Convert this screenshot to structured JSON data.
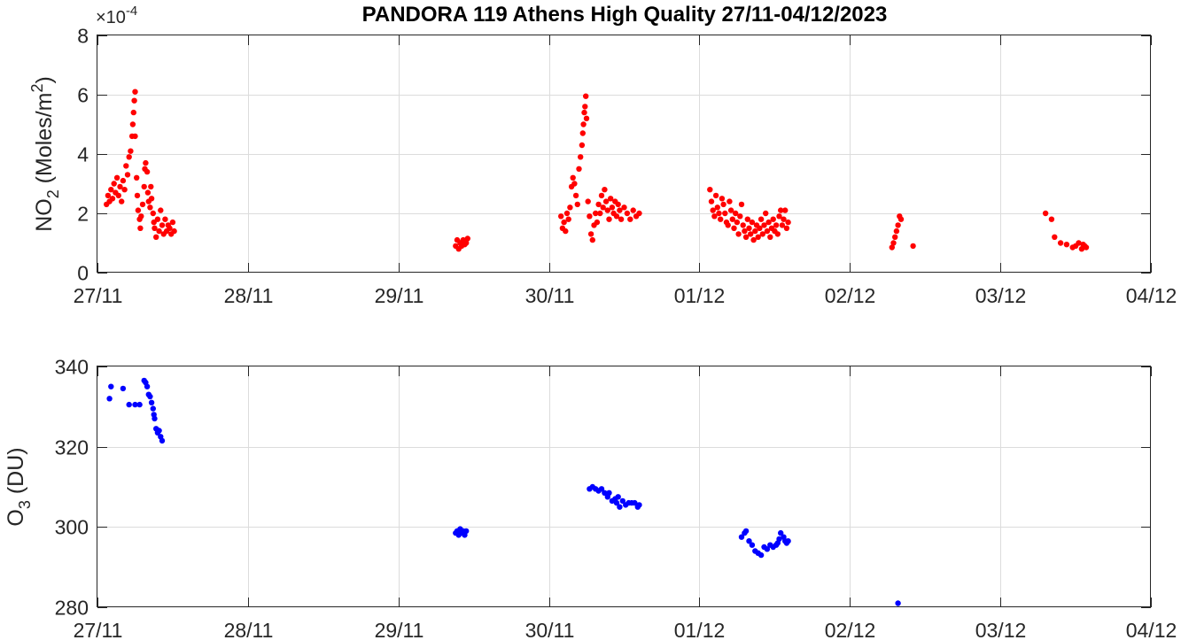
{
  "title": "PANDORA 119 Athens High Quality 27/11-04/12/2023",
  "chart_data": [
    {
      "type": "scatter",
      "ylabel_main": "NO",
      "ylabel_sub": "2",
      "ylabel_unit_pre": " (Moles/m",
      "ylabel_unit_sup": "2",
      "ylabel_unit_post": ")",
      "exponent_base": "×10",
      "exponent_power": "-4",
      "x_tick_labels": [
        "27/11",
        "28/11",
        "29/11",
        "30/11",
        "01/12",
        "02/12",
        "03/12",
        "04/12"
      ],
      "xlim": [
        0,
        7
      ],
      "ylim": [
        0,
        8
      ],
      "y_ticks": [
        0,
        2,
        4,
        6,
        8
      ],
      "y_tick_labels": [
        "0",
        "2",
        "4",
        "6",
        "8"
      ],
      "grid": true,
      "series": [
        {
          "color": "#ff0000",
          "points": [
            [
              0.06,
              2.3
            ],
            [
              0.07,
              2.6
            ],
            [
              0.08,
              2.4
            ],
            [
              0.09,
              2.8
            ],
            [
              0.1,
              2.5
            ],
            [
              0.11,
              3.0
            ],
            [
              0.12,
              2.7
            ],
            [
              0.13,
              3.2
            ],
            [
              0.14,
              2.6
            ],
            [
              0.15,
              2.9
            ],
            [
              0.16,
              2.4
            ],
            [
              0.17,
              3.1
            ],
            [
              0.18,
              2.8
            ],
            [
              0.19,
              3.6
            ],
            [
              0.2,
              3.3
            ],
            [
              0.21,
              3.9
            ],
            [
              0.22,
              4.1
            ],
            [
              0.23,
              4.6
            ],
            [
              0.235,
              5.0
            ],
            [
              0.24,
              5.4
            ],
            [
              0.245,
              5.8
            ],
            [
              0.25,
              6.1
            ],
            [
              0.25,
              4.6
            ],
            [
              0.26,
              3.2
            ],
            [
              0.265,
              2.6
            ],
            [
              0.27,
              2.1
            ],
            [
              0.28,
              1.8
            ],
            [
              0.285,
              1.5
            ],
            [
              0.29,
              1.9
            ],
            [
              0.3,
              2.3
            ],
            [
              0.31,
              2.9
            ],
            [
              0.315,
              3.5
            ],
            [
              0.32,
              3.7
            ],
            [
              0.33,
              3.4
            ],
            [
              0.335,
              2.7
            ],
            [
              0.34,
              2.4
            ],
            [
              0.35,
              2.2
            ],
            [
              0.355,
              2.9
            ],
            [
              0.36,
              2.5
            ],
            [
              0.37,
              2.0
            ],
            [
              0.375,
              1.7
            ],
            [
              0.38,
              1.5
            ],
            [
              0.39,
              1.2
            ],
            [
              0.4,
              1.8
            ],
            [
              0.41,
              1.4
            ],
            [
              0.42,
              2.1
            ],
            [
              0.43,
              1.6
            ],
            [
              0.44,
              1.3
            ],
            [
              0.45,
              1.8
            ],
            [
              0.46,
              1.4
            ],
            [
              0.47,
              1.6
            ],
            [
              0.48,
              1.5
            ],
            [
              0.49,
              1.3
            ],
            [
              0.5,
              1.7
            ],
            [
              0.51,
              1.4
            ],
            [
              2.38,
              0.9
            ],
            [
              2.39,
              1.1
            ],
            [
              2.4,
              0.8
            ],
            [
              2.41,
              1.0
            ],
            [
              2.42,
              0.9
            ],
            [
              2.43,
              1.1
            ],
            [
              2.44,
              0.95
            ],
            [
              2.45,
              1.0
            ],
            [
              2.46,
              1.15
            ],
            [
              3.08,
              1.9
            ],
            [
              3.09,
              1.5
            ],
            [
              3.1,
              1.7
            ],
            [
              3.11,
              1.4
            ],
            [
              3.12,
              2.0
            ],
            [
              3.13,
              1.8
            ],
            [
              3.14,
              2.2
            ],
            [
              3.15,
              2.9
            ],
            [
              3.16,
              3.2
            ],
            [
              3.17,
              3.0
            ],
            [
              3.18,
              2.6
            ],
            [
              3.19,
              2.3
            ],
            [
              3.2,
              3.5
            ],
            [
              3.21,
              3.9
            ],
            [
              3.22,
              4.3
            ],
            [
              3.225,
              4.7
            ],
            [
              3.23,
              5.0
            ],
            [
              3.235,
              5.4
            ],
            [
              3.24,
              5.6
            ],
            [
              3.245,
              5.95
            ],
            [
              3.25,
              5.2
            ],
            [
              3.26,
              2.4
            ],
            [
              3.27,
              1.9
            ],
            [
              3.28,
              1.3
            ],
            [
              3.29,
              1.1
            ],
            [
              3.3,
              1.6
            ],
            [
              3.31,
              2.0
            ],
            [
              3.32,
              1.7
            ],
            [
              3.33,
              2.3
            ],
            [
              3.34,
              2.0
            ],
            [
              3.35,
              2.6
            ],
            [
              3.36,
              2.2
            ],
            [
              3.37,
              2.8
            ],
            [
              3.38,
              2.4
            ],
            [
              3.39,
              2.1
            ],
            [
              3.4,
              1.8
            ],
            [
              3.41,
              2.5
            ],
            [
              3.42,
              2.2
            ],
            [
              3.43,
              2.0
            ],
            [
              3.44,
              2.4
            ],
            [
              3.45,
              1.9
            ],
            [
              3.46,
              2.3
            ],
            [
              3.47,
              2.1
            ],
            [
              3.48,
              1.8
            ],
            [
              3.5,
              2.2
            ],
            [
              3.52,
              2.0
            ],
            [
              3.54,
              1.8
            ],
            [
              3.56,
              2.1
            ],
            [
              3.58,
              1.9
            ],
            [
              3.6,
              2.0
            ],
            [
              4.07,
              2.8
            ],
            [
              4.08,
              2.4
            ],
            [
              4.09,
              2.1
            ],
            [
              4.1,
              1.9
            ],
            [
              4.11,
              2.6
            ],
            [
              4.12,
              2.2
            ],
            [
              4.13,
              2.0
            ],
            [
              4.14,
              1.8
            ],
            [
              4.15,
              2.5
            ],
            [
              4.16,
              2.3
            ],
            [
              4.17,
              2.0
            ],
            [
              4.18,
              1.7
            ],
            [
              4.19,
              1.6
            ],
            [
              4.2,
              2.4
            ],
            [
              4.21,
              2.1
            ],
            [
              4.22,
              1.8
            ],
            [
              4.23,
              1.5
            ],
            [
              4.24,
              2.0
            ],
            [
              4.25,
              1.7
            ],
            [
              4.26,
              1.3
            ],
            [
              4.27,
              1.9
            ],
            [
              4.28,
              2.3
            ],
            [
              4.29,
              1.6
            ],
            [
              4.3,
              1.4
            ],
            [
              4.31,
              1.2
            ],
            [
              4.32,
              1.8
            ],
            [
              4.33,
              1.5
            ],
            [
              4.34,
              1.3
            ],
            [
              4.35,
              1.7
            ],
            [
              4.36,
              1.1
            ],
            [
              4.37,
              1.4
            ],
            [
              4.38,
              1.6
            ],
            [
              4.39,
              1.2
            ],
            [
              4.4,
              1.5
            ],
            [
              4.41,
              1.8
            ],
            [
              4.42,
              1.3
            ],
            [
              4.43,
              1.6
            ],
            [
              4.44,
              2.0
            ],
            [
              4.45,
              1.4
            ],
            [
              4.46,
              1.7
            ],
            [
              4.47,
              1.2
            ],
            [
              4.48,
              1.5
            ],
            [
              4.49,
              1.8
            ],
            [
              4.5,
              1.4
            ],
            [
              4.51,
              1.6
            ],
            [
              4.52,
              1.3
            ],
            [
              4.53,
              1.9
            ],
            [
              4.54,
              2.1
            ],
            [
              4.55,
              1.6
            ],
            [
              4.56,
              1.8
            ],
            [
              4.57,
              2.1
            ],
            [
              4.58,
              1.5
            ],
            [
              4.59,
              1.7
            ],
            [
              5.28,
              0.85
            ],
            [
              5.29,
              1.0
            ],
            [
              5.3,
              1.2
            ],
            [
              5.31,
              1.4
            ],
            [
              5.32,
              1.6
            ],
            [
              5.33,
              1.9
            ],
            [
              5.34,
              1.8
            ],
            [
              5.42,
              0.9
            ],
            [
              6.3,
              2.0
            ],
            [
              6.34,
              1.8
            ],
            [
              6.36,
              1.2
            ],
            [
              6.4,
              1.0
            ],
            [
              6.44,
              0.95
            ],
            [
              6.48,
              0.85
            ],
            [
              6.5,
              0.9
            ],
            [
              6.52,
              1.0
            ],
            [
              6.54,
              0.8
            ],
            [
              6.55,
              0.95
            ],
            [
              6.56,
              0.9
            ],
            [
              6.57,
              0.85
            ]
          ]
        }
      ]
    },
    {
      "type": "scatter",
      "ylabel_main": "O",
      "ylabel_sub": "3",
      "ylabel_unit": " (DU)",
      "x_tick_labels": [
        "27/11",
        "28/11",
        "29/11",
        "30/11",
        "01/12",
        "02/12",
        "03/12",
        "04/12"
      ],
      "xlim": [
        0,
        7
      ],
      "ylim": [
        280,
        340
      ],
      "y_ticks": [
        280,
        300,
        320,
        340
      ],
      "y_tick_labels": [
        "280",
        "300",
        "320",
        "340"
      ],
      "grid": true,
      "series": [
        {
          "color": "#0000ff",
          "points": [
            [
              0.08,
              332
            ],
            [
              0.09,
              335
            ],
            [
              0.17,
              334.5
            ],
            [
              0.21,
              330.5
            ],
            [
              0.25,
              330.5
            ],
            [
              0.28,
              330.5
            ],
            [
              0.31,
              336.5
            ],
            [
              0.32,
              336
            ],
            [
              0.33,
              335
            ],
            [
              0.34,
              333
            ],
            [
              0.35,
              332.5
            ],
            [
              0.36,
              331
            ],
            [
              0.37,
              329.5
            ],
            [
              0.375,
              328
            ],
            [
              0.38,
              327
            ],
            [
              0.39,
              324.5
            ],
            [
              0.4,
              323.5
            ],
            [
              0.41,
              324
            ],
            [
              0.42,
              322.5
            ],
            [
              0.43,
              321.5
            ],
            [
              2.38,
              298.5
            ],
            [
              2.39,
              299
            ],
            [
              2.4,
              298
            ],
            [
              2.41,
              299.5
            ],
            [
              2.42,
              298.5
            ],
            [
              2.43,
              299
            ],
            [
              2.44,
              298
            ],
            [
              2.45,
              299
            ],
            [
              3.27,
              309.5
            ],
            [
              3.29,
              310
            ],
            [
              3.31,
              309.5
            ],
            [
              3.33,
              309
            ],
            [
              3.35,
              309.5
            ],
            [
              3.37,
              308.5
            ],
            [
              3.39,
              307.5
            ],
            [
              3.4,
              308.5
            ],
            [
              3.42,
              306.5
            ],
            [
              3.44,
              307
            ],
            [
              3.45,
              306
            ],
            [
              3.46,
              307.5
            ],
            [
              3.47,
              305
            ],
            [
              3.49,
              306.5
            ],
            [
              3.51,
              305.5
            ],
            [
              3.53,
              306
            ],
            [
              3.55,
              306
            ],
            [
              3.57,
              306
            ],
            [
              3.59,
              305
            ],
            [
              3.6,
              305.5
            ],
            [
              4.28,
              297.5
            ],
            [
              4.3,
              298.5
            ],
            [
              4.31,
              299
            ],
            [
              4.33,
              296.5
            ],
            [
              4.35,
              295.5
            ],
            [
              4.37,
              294
            ],
            [
              4.39,
              293.5
            ],
            [
              4.41,
              293
            ],
            [
              4.43,
              295
            ],
            [
              4.45,
              294.5
            ],
            [
              4.47,
              295.5
            ],
            [
              4.49,
              295
            ],
            [
              4.51,
              295.5
            ],
            [
              4.52,
              296
            ],
            [
              4.53,
              297
            ],
            [
              4.54,
              298.5
            ],
            [
              4.56,
              297.5
            ],
            [
              4.57,
              296.5
            ],
            [
              4.58,
              296
            ],
            [
              4.59,
              296.5
            ],
            [
              5.32,
              281
            ]
          ]
        }
      ]
    }
  ]
}
